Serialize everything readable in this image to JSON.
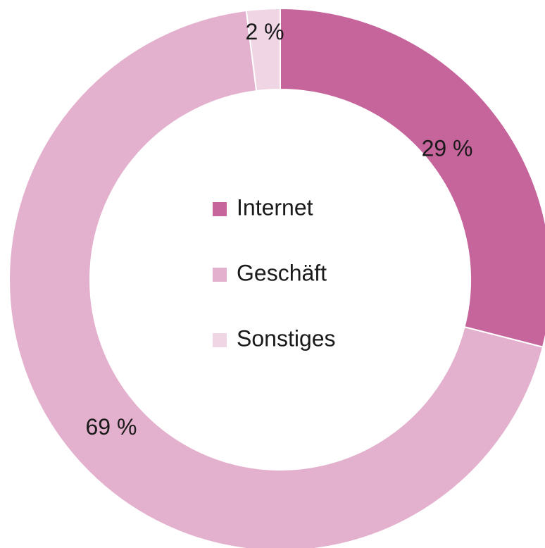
{
  "chart_data": {
    "type": "pie",
    "subtype": "donut",
    "categories": [
      "Internet",
      "Geschäft",
      "Sonstiges"
    ],
    "values": [
      29,
      69,
      2
    ],
    "unit": "%",
    "data_labels": [
      "29 %",
      "69 %",
      "2 %"
    ],
    "colors": [
      "#c6649c",
      "#e3b1cd",
      "#f0d6e5"
    ],
    "legend": {
      "placement": "center",
      "entries": [
        "Internet",
        "Geschäft",
        "Sonstiges"
      ]
    },
    "start_angle_deg": 0,
    "direction": "clockwise"
  }
}
